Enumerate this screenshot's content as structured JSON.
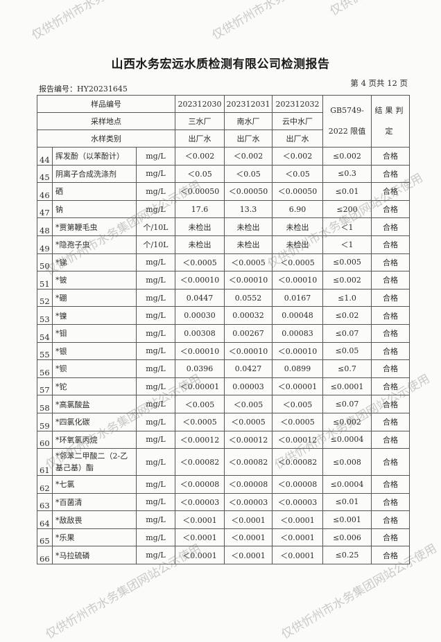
{
  "title": "山西水务宏远水质检测有限公司检测报告",
  "report_no": "报告编号：HY20231645",
  "page_no": "第 4 页共 12 页",
  "watermark": "仅供忻州市水务集团网站公示使用",
  "header": {
    "sample_no_label": "样品编号",
    "location_label": "采样地点",
    "type_label": "水样类别",
    "limit_label": "GB5749-2022 限值",
    "result_label": "结果判定",
    "samples": [
      {
        "no": "202312030",
        "location": "三水厂",
        "type": "出厂水"
      },
      {
        "no": "202312031",
        "location": "南水厂",
        "type": "出厂水"
      },
      {
        "no": "202312032",
        "location": "云中水厂",
        "type": "出厂水"
      }
    ]
  },
  "rows": [
    {
      "no": "44",
      "name": "挥发酚（以苯酚计）",
      "unit": "mg/L",
      "v1": "＜0.002",
      "v2": "＜0.002",
      "v3": "＜0.002",
      "limit": "≤0.002",
      "result": "合格"
    },
    {
      "no": "45",
      "name": "阴离子合成洗涤剂",
      "unit": "mg/L",
      "v1": "＜0.05",
      "v2": "＜0.05",
      "v3": "＜0.05",
      "limit": "≤0.3",
      "result": "合格"
    },
    {
      "no": "46",
      "name": "硒",
      "unit": "mg/L",
      "v1": "＜0.00050",
      "v2": "＜0.00050",
      "v3": "＜0.00050",
      "limit": "≤0.01",
      "result": "合格"
    },
    {
      "no": "47",
      "name": "钠",
      "unit": "mg/L",
      "v1": "17.6",
      "v2": "13.3",
      "v3": "6.90",
      "limit": "≤200",
      "result": "合格"
    },
    {
      "no": "48",
      "name": "*贾第鞭毛虫",
      "unit": "个/10L",
      "v1": "未检出",
      "v2": "未检出",
      "v3": "未检出",
      "limit": "＜1",
      "result": "合格"
    },
    {
      "no": "49",
      "name": "*隐孢子虫",
      "unit": "个/10L",
      "v1": "未检出",
      "v2": "未检出",
      "v3": "未检出",
      "limit": "＜1",
      "result": "合格"
    },
    {
      "no": "50",
      "name": "*锑",
      "unit": "mg/L",
      "v1": "＜0.0005",
      "v2": "＜0.0005",
      "v3": "＜0.0005",
      "limit": "≤0.005",
      "result": "合格"
    },
    {
      "no": "51",
      "name": "*铍",
      "unit": "mg/L",
      "v1": "＜0.00010",
      "v2": "＜0.00010",
      "v3": "＜0.00010",
      "limit": "≤0.002",
      "result": "合格"
    },
    {
      "no": "52",
      "name": "*硼",
      "unit": "mg/L",
      "v1": "0.0447",
      "v2": "0.0552",
      "v3": "0.0167",
      "limit": "≤1.0",
      "result": "合格"
    },
    {
      "no": "53",
      "name": "*镍",
      "unit": "mg/L",
      "v1": "0.00030",
      "v2": "0.00032",
      "v3": "0.00048",
      "limit": "≤0.02",
      "result": "合格"
    },
    {
      "no": "54",
      "name": "*钼",
      "unit": "mg/L",
      "v1": "0.00308",
      "v2": "0.00267",
      "v3": "0.00083",
      "limit": "≤0.07",
      "result": "合格"
    },
    {
      "no": "55",
      "name": "*银",
      "unit": "mg/L",
      "v1": "＜0.00010",
      "v2": "＜0.00010",
      "v3": "＜0.00010",
      "limit": "≤0.05",
      "result": "合格"
    },
    {
      "no": "56",
      "name": "*钡",
      "unit": "mg/L",
      "v1": "0.0396",
      "v2": "0.0427",
      "v3": "0.0899",
      "limit": "≤0.7",
      "result": "合格"
    },
    {
      "no": "57",
      "name": "*铊",
      "unit": "mg/L",
      "v1": "＜0.00001",
      "v2": "0.00003",
      "v3": "＜0.00001",
      "limit": "≤0.0001",
      "result": "合格"
    },
    {
      "no": "58",
      "name": "*高氯酸盐",
      "unit": "mg/L",
      "v1": "＜0.005",
      "v2": "＜0.005",
      "v3": "＜0.005",
      "limit": "≤0.07",
      "result": "合格"
    },
    {
      "no": "59",
      "name": "*四氯化碳",
      "unit": "mg/L",
      "v1": "＜0.0005",
      "v2": "＜0.0005",
      "v3": "＜0.0005",
      "limit": "≤0.002",
      "result": "合格"
    },
    {
      "no": "60",
      "name": "*环氧氯丙烷",
      "unit": "mg/L",
      "v1": "＜0.00012",
      "v2": "＜0.00012",
      "v3": "＜0.00012",
      "limit": "≤0.0004",
      "result": "合格"
    },
    {
      "no": "61",
      "name": "*邻苯二甲酸二（2-乙基己基）酯",
      "unit": "mg/L",
      "v1": "＜0.00082",
      "v2": "＜0.00082",
      "v3": "＜0.00082",
      "limit": "≤0.008",
      "result": "合格"
    },
    {
      "no": "62",
      "name": "*七氯",
      "unit": "mg/L",
      "v1": "＜0.00008",
      "v2": "＜0.00008",
      "v3": "＜0.00008",
      "limit": "≤0.0004",
      "result": "合格"
    },
    {
      "no": "63",
      "name": "*百菌清",
      "unit": "mg/L",
      "v1": "＜0.00003",
      "v2": "＜0.00003",
      "v3": "＜0.00003",
      "limit": "≤0.01",
      "result": "合格"
    },
    {
      "no": "64",
      "name": "*敌敌畏",
      "unit": "mg/L",
      "v1": "＜0.0001",
      "v2": "＜0.0001",
      "v3": "＜0.0001",
      "limit": "≤0.001",
      "result": "合格"
    },
    {
      "no": "65",
      "name": "*乐果",
      "unit": "mg/L",
      "v1": "＜0.0001",
      "v2": "＜0.0001",
      "v3": "＜0.0001",
      "limit": "≤0.006",
      "result": "合格"
    },
    {
      "no": "66",
      "name": "*马拉硫磷",
      "unit": "mg/L",
      "v1": "＜0.0001",
      "v2": "＜0.0001",
      "v3": "＜0.0001",
      "limit": "≤0.25",
      "result": "合格"
    }
  ]
}
